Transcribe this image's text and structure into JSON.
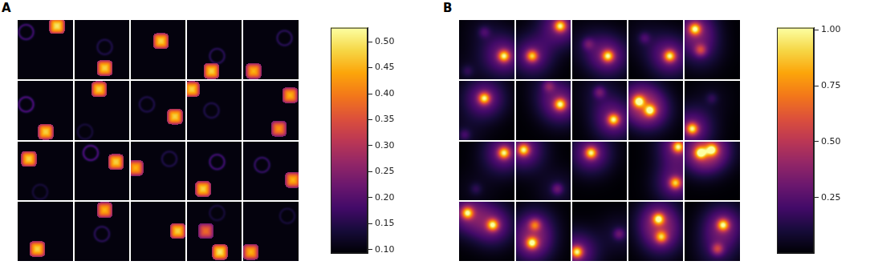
{
  "chart_data": [
    {
      "type": "heatmap_grid",
      "panel_label": "A",
      "marker": "square",
      "grid": true,
      "tick_labels": false,
      "rows": 4,
      "cols": 5,
      "background": 0.1,
      "tiles": [
        [
          {
            "x": 0.15,
            "y": 0.2,
            "value": 0.17,
            "marker": "ring"
          },
          {
            "x": 0.7,
            "y": 0.1,
            "value": 0.5
          }
        ],
        [
          {
            "x": 0.55,
            "y": 0.45,
            "value": 0.14,
            "marker": "ring"
          },
          {
            "x": 0.55,
            "y": 0.8,
            "value": 0.48
          }
        ],
        [
          {
            "x": 0.55,
            "y": 0.35,
            "value": 0.48
          }
        ],
        [
          {
            "x": 0.55,
            "y": 0.6,
            "value": 0.15,
            "marker": "ring"
          },
          {
            "x": 0.45,
            "y": 0.85,
            "value": 0.48
          }
        ],
        [
          {
            "x": 0.75,
            "y": 0.3,
            "value": 0.15,
            "marker": "ring"
          },
          {
            "x": 0.2,
            "y": 0.85,
            "value": 0.45
          }
        ],
        [
          {
            "x": 0.15,
            "y": 0.4,
            "value": 0.18,
            "marker": "ring"
          },
          {
            "x": 0.5,
            "y": 0.85,
            "value": 0.48
          }
        ],
        [
          {
            "x": 0.45,
            "y": 0.15,
            "value": 0.48
          },
          {
            "x": 0.2,
            "y": 0.85,
            "value": 0.13,
            "marker": "ring"
          }
        ],
        [
          {
            "x": 0.3,
            "y": 0.4,
            "value": 0.14,
            "marker": "ring"
          },
          {
            "x": 0.8,
            "y": 0.6,
            "value": 0.48
          }
        ],
        [
          {
            "x": 0.1,
            "y": 0.15,
            "value": 0.48
          },
          {
            "x": 0.45,
            "y": 0.5,
            "value": 0.14,
            "marker": "ring"
          }
        ],
        [
          {
            "x": 0.85,
            "y": 0.25,
            "value": 0.45
          },
          {
            "x": 0.65,
            "y": 0.8,
            "value": 0.42
          }
        ],
        [
          {
            "x": 0.2,
            "y": 0.3,
            "value": 0.48
          },
          {
            "x": 0.4,
            "y": 0.85,
            "value": 0.13,
            "marker": "ring"
          }
        ],
        [
          {
            "x": 0.3,
            "y": 0.2,
            "value": 0.18,
            "marker": "ring"
          },
          {
            "x": 0.75,
            "y": 0.35,
            "value": 0.48
          }
        ],
        [
          {
            "x": 0.1,
            "y": 0.45,
            "value": 0.45
          },
          {
            "x": 0.7,
            "y": 0.3,
            "value": 0.14,
            "marker": "ring"
          }
        ],
        [
          {
            "x": 0.55,
            "y": 0.35,
            "value": 0.17,
            "marker": "ring"
          },
          {
            "x": 0.3,
            "y": 0.8,
            "value": 0.48
          }
        ],
        [
          {
            "x": 0.35,
            "y": 0.4,
            "value": 0.16,
            "marker": "ring"
          },
          {
            "x": 0.9,
            "y": 0.65,
            "value": 0.45
          }
        ],
        [
          {
            "x": 0.35,
            "y": 0.8,
            "value": 0.48
          }
        ],
        [
          {
            "x": 0.55,
            "y": 0.15,
            "value": 0.45
          },
          {
            "x": 0.5,
            "y": 0.55,
            "value": 0.15,
            "marker": "ring"
          }
        ],
        [
          {
            "x": 0.85,
            "y": 0.5,
            "value": 0.48
          }
        ],
        [
          {
            "x": 0.55,
            "y": 0.2,
            "value": 0.13,
            "marker": "ring"
          },
          {
            "x": 0.35,
            "y": 0.5,
            "value": 0.38
          },
          {
            "x": 0.6,
            "y": 0.85,
            "value": 0.5
          }
        ],
        [
          {
            "x": 0.8,
            "y": 0.25,
            "value": 0.13,
            "marker": "ring"
          },
          {
            "x": 0.15,
            "y": 0.85,
            "value": 0.45
          }
        ]
      ],
      "colorbar": {
        "range": [
          0.093,
          0.527
        ],
        "ticks": [
          {
            "value": 0.1,
            "label": "0.10"
          },
          {
            "value": 0.15,
            "label": "0.15"
          },
          {
            "value": 0.2,
            "label": "0.20"
          },
          {
            "value": 0.25,
            "label": "0.25"
          },
          {
            "value": 0.3,
            "label": "0.30"
          },
          {
            "value": 0.35,
            "label": "0.35"
          },
          {
            "value": 0.4,
            "label": "0.40"
          },
          {
            "value": 0.45,
            "label": "0.45"
          },
          {
            "value": 0.5,
            "label": "0.50"
          }
        ]
      }
    },
    {
      "type": "heatmap_grid",
      "panel_label": "B",
      "marker": "gaussian",
      "grid": true,
      "tick_labels": false,
      "rows": 4,
      "cols": 5,
      "background": 0.0,
      "tiles": [
        [
          {
            "x": 0.8,
            "y": 0.6,
            "value": 1.0
          },
          {
            "x": 0.45,
            "y": 0.2,
            "value": 0.2
          },
          {
            "x": 0.15,
            "y": 0.85,
            "value": 0.15
          }
        ],
        [
          {
            "x": 0.8,
            "y": 0.1,
            "value": 1.0
          },
          {
            "x": 0.3,
            "y": 0.6,
            "value": 0.9
          }
        ],
        [
          {
            "x": 0.65,
            "y": 0.6,
            "value": 1.0
          },
          {
            "x": 0.3,
            "y": 0.4,
            "value": 0.25
          }
        ],
        [
          {
            "x": 0.75,
            "y": 0.6,
            "value": 1.0
          },
          {
            "x": 0.3,
            "y": 0.3,
            "value": 0.2
          }
        ],
        [
          {
            "x": 0.2,
            "y": 0.15,
            "value": 1.0
          },
          {
            "x": 0.3,
            "y": 0.5,
            "value": 0.5
          }
        ],
        [
          {
            "x": 0.45,
            "y": 0.3,
            "value": 1.0
          },
          {
            "x": 0.1,
            "y": 0.9,
            "value": 0.2
          }
        ],
        [
          {
            "x": 0.8,
            "y": 0.4,
            "value": 1.0
          },
          {
            "x": 0.6,
            "y": 0.1,
            "value": 0.3
          }
        ],
        [
          {
            "x": 0.75,
            "y": 0.65,
            "value": 1.0
          },
          {
            "x": 0.5,
            "y": 0.2,
            "value": 0.3
          }
        ],
        [
          {
            "x": 0.2,
            "y": 0.35,
            "value": 1.0
          },
          {
            "x": 0.4,
            "y": 0.5,
            "value": 0.95
          }
        ],
        [
          {
            "x": 0.15,
            "y": 0.8,
            "value": 1.0
          },
          {
            "x": 0.5,
            "y": 0.3,
            "value": 0.15
          }
        ],
        [
          {
            "x": 0.8,
            "y": 0.2,
            "value": 1.0
          },
          {
            "x": 0.3,
            "y": 0.8,
            "value": 0.15
          }
        ],
        [
          {
            "x": 0.15,
            "y": 0.15,
            "value": 1.0
          },
          {
            "x": 0.75,
            "y": 0.8,
            "value": 0.3
          }
        ],
        [
          {
            "x": 0.35,
            "y": 0.2,
            "value": 1.0
          }
        ],
        [
          {
            "x": 0.9,
            "y": 0.1,
            "value": 1.0
          },
          {
            "x": 0.85,
            "y": 0.7,
            "value": 0.9
          }
        ],
        [
          {
            "x": 0.3,
            "y": 0.2,
            "value": 1.0
          },
          {
            "x": 0.5,
            "y": 0.15,
            "value": 0.95
          }
        ],
        [
          {
            "x": 0.15,
            "y": 0.2,
            "value": 1.0
          },
          {
            "x": 0.6,
            "y": 0.4,
            "value": 1.0
          }
        ],
        [
          {
            "x": 0.3,
            "y": 0.7,
            "value": 1.0
          },
          {
            "x": 0.35,
            "y": 0.4,
            "value": 0.6
          }
        ],
        [
          {
            "x": 0.1,
            "y": 0.85,
            "value": 1.0
          },
          {
            "x": 0.85,
            "y": 0.55,
            "value": 0.3
          }
        ],
        [
          {
            "x": 0.55,
            "y": 0.3,
            "value": 1.0
          },
          {
            "x": 0.6,
            "y": 0.6,
            "value": 0.8
          }
        ],
        [
          {
            "x": 0.7,
            "y": 0.4,
            "value": 1.0
          },
          {
            "x": 0.6,
            "y": 0.8,
            "value": 0.5
          }
        ]
      ],
      "colorbar": {
        "range": [
          0.0,
          1.01
        ],
        "ticks": [
          {
            "value": 0.25,
            "label": "0.25"
          },
          {
            "value": 0.5,
            "label": "0.50"
          },
          {
            "value": 0.75,
            "label": "0.75"
          },
          {
            "value": 1.0,
            "label": "1.00"
          }
        ]
      }
    }
  ]
}
